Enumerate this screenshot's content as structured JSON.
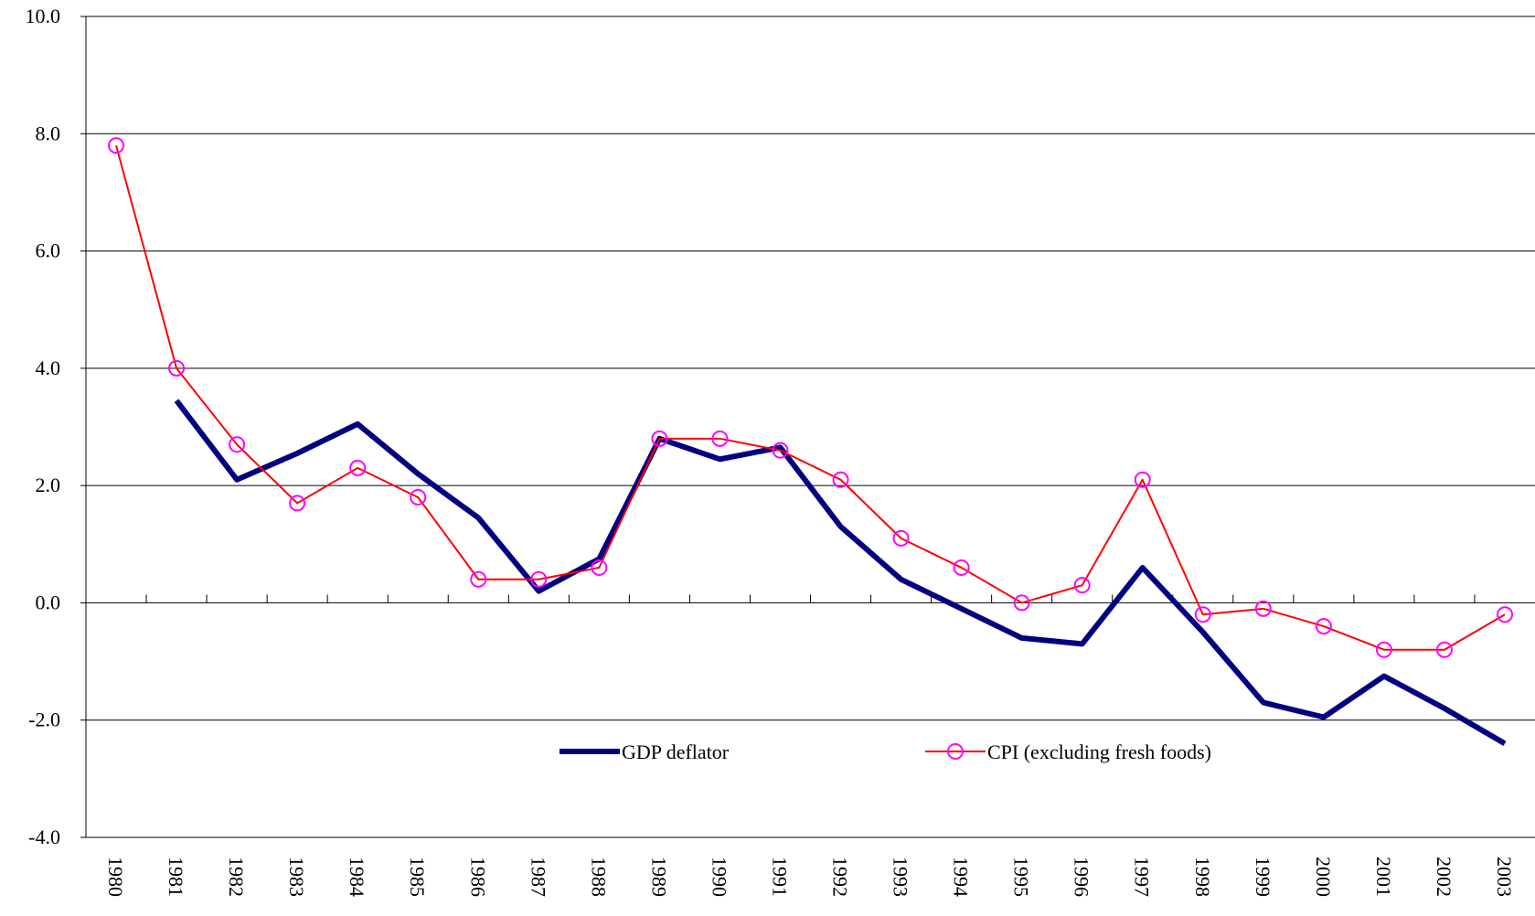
{
  "chart_data": {
    "type": "line",
    "categories": [
      "1980",
      "1981",
      "1982",
      "1983",
      "1984",
      "1985",
      "1986",
      "1987",
      "1988",
      "1989",
      "1990",
      "1991",
      "1992",
      "1993",
      "1994",
      "1995",
      "1996",
      "1997",
      "1998",
      "1999",
      "2000",
      "2001",
      "2002",
      "2003"
    ],
    "series": [
      {
        "name": "GDP deflator",
        "color": "#000080",
        "marker": "none",
        "values": [
          null,
          3.45,
          2.1,
          2.55,
          3.05,
          2.2,
          1.45,
          0.2,
          0.75,
          2.8,
          2.45,
          2.65,
          1.3,
          0.4,
          -0.1,
          -0.6,
          -0.7,
          0.6,
          -0.5,
          -1.7,
          -1.95,
          -1.25,
          -1.8,
          -2.4
        ]
      },
      {
        "name": "CPI (excluding fresh foods)",
        "color": "#ff0000",
        "marker": "circle",
        "marker_color": "#ff00ff",
        "values": [
          7.8,
          4.0,
          2.7,
          1.7,
          2.3,
          1.8,
          0.4,
          0.4,
          0.6,
          2.8,
          2.8,
          2.6,
          2.1,
          1.1,
          0.6,
          0.0,
          0.3,
          2.1,
          -0.2,
          -0.1,
          -0.4,
          -0.8,
          -0.8,
          -0.2
        ]
      }
    ],
    "ylim": [
      -4,
      10
    ],
    "yticks": [
      {
        "value": -4,
        "label": "-4.0"
      },
      {
        "value": -2,
        "label": "-2.0"
      },
      {
        "value": 0,
        "label": "0.0"
      },
      {
        "value": 2,
        "label": "2.0"
      },
      {
        "value": 4,
        "label": "4.0"
      },
      {
        "value": 6,
        "label": "6.0"
      },
      {
        "value": 8,
        "label": "8.0"
      },
      {
        "value": 10,
        "label": "10.0"
      }
    ],
    "grid": true,
    "legend": "bottom"
  }
}
